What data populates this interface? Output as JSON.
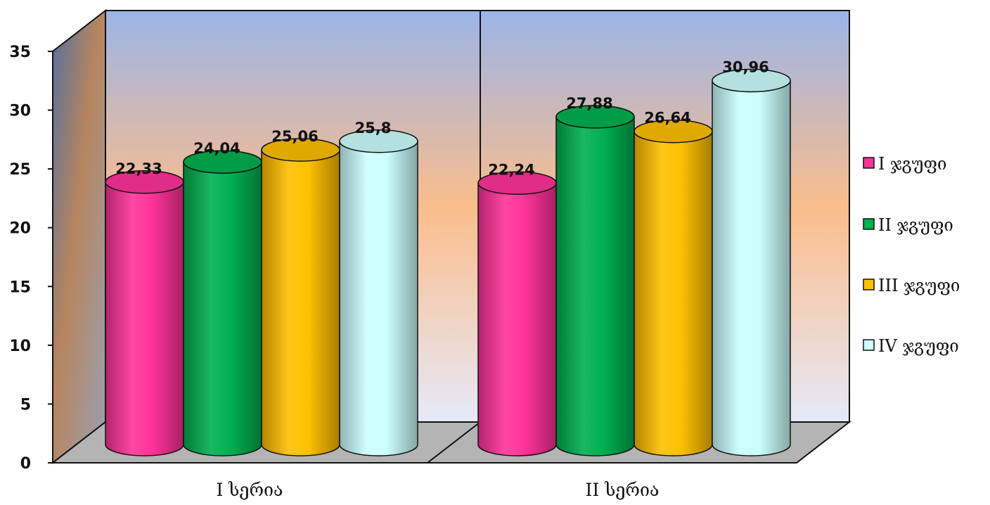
{
  "chart_data": {
    "type": "bar",
    "style": "3d-cylinder",
    "categories": [
      "I  სერია",
      "II  სერია"
    ],
    "series": [
      {
        "name": "I  ჯგუფი",
        "values": [
          22.33,
          22.24
        ],
        "labels": [
          "22,33",
          "22,24"
        ],
        "color": "#ff3399"
      },
      {
        "name": "II  ჯგუფი",
        "values": [
          24.04,
          27.88
        ],
        "labels": [
          "24,04",
          "27,88"
        ],
        "color": "#00b050"
      },
      {
        "name": "III  ჯგუფი",
        "values": [
          25.06,
          26.64
        ],
        "labels": [
          "25,06",
          "26,64"
        ],
        "color": "#ffc000"
      },
      {
        "name": "IV  ჯგუფი",
        "values": [
          25.8,
          30.96
        ],
        "labels": [
          "25,8",
          "30,96"
        ],
        "color": "#ccffff"
      }
    ],
    "yticks": [
      "0",
      "5",
      "10",
      "15",
      "20",
      "25",
      "30",
      "35"
    ],
    "ylim": [
      0,
      35
    ],
    "grid": false,
    "legend": "right"
  }
}
